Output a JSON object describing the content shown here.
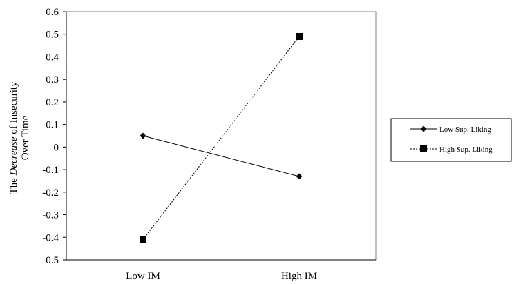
{
  "chart_data": {
    "type": "line",
    "categories": [
      "Low IM",
      "High IM"
    ],
    "series": [
      {
        "name": "Low Sup. Liking",
        "values": [
          0.05,
          -0.13
        ],
        "marker": "diamond",
        "line_style": "solid",
        "color": "#000000"
      },
      {
        "name": "High Sup. Liking",
        "values": [
          -0.41,
          0.49
        ],
        "marker": "square",
        "line_style": "dotted",
        "color": "#000000"
      }
    ],
    "ylabel_lines": [
      {
        "parts": [
          {
            "text": "The ",
            "italic": false
          },
          {
            "text": "Decrease",
            "italic": true
          },
          {
            "text": " of Insecurity",
            "italic": false
          }
        ]
      },
      {
        "parts": [
          {
            "text": "Over Time",
            "italic": false
          }
        ]
      }
    ],
    "ylim": [
      -0.5,
      0.6
    ],
    "yticks": [
      0.6,
      0.5,
      0.4,
      0.3,
      0.2,
      0.1,
      0,
      -0.1,
      -0.2,
      -0.3,
      -0.4,
      -0.5
    ],
    "ytick_labels": [
      "0.6",
      "0.5",
      "0.4",
      "0.3",
      "0.2",
      "0.1",
      "0",
      "-0.1",
      "-0.2",
      "-0.3",
      "-0.4",
      "-0.5"
    ],
    "grid": false,
    "legend": {
      "placement": "right"
    }
  }
}
